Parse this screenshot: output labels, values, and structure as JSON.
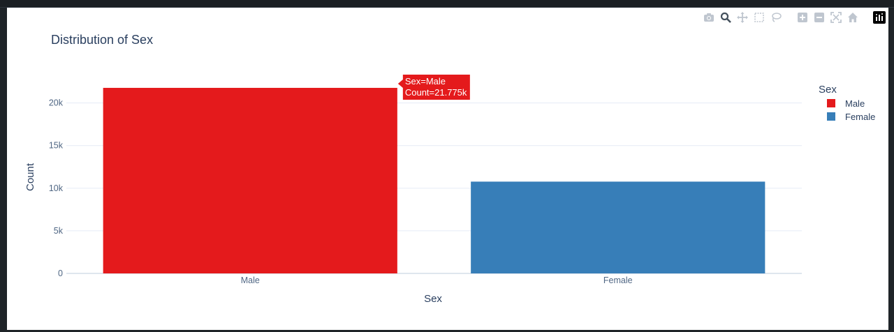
{
  "modebar": {
    "icons": [
      "camera-icon",
      "zoom-icon",
      "pan-icon",
      "box-select-icon",
      "lasso-icon",
      "zoom-in-icon",
      "zoom-out-icon",
      "autoscale-icon",
      "reset-axes-icon",
      "plotly-logo-icon"
    ]
  },
  "colors": {
    "male": "#e41a1c",
    "female": "#377eb8",
    "grid": "#e5ecf6",
    "text": "#2a3f5f",
    "tick": "#506784"
  },
  "chart_data": {
    "type": "bar",
    "title": "Distribution of Sex",
    "xlabel": "Sex",
    "ylabel": "Count",
    "categories": [
      "Male",
      "Female"
    ],
    "series": [
      {
        "name": "Male",
        "values": [
          21775,
          null
        ]
      },
      {
        "name": "Female",
        "values": [
          null,
          10771
        ]
      }
    ],
    "values": [
      21775,
      10771
    ],
    "ylim": [
      0,
      23000
    ],
    "yticks": [
      0,
      5000,
      10000,
      15000,
      20000
    ],
    "ytick_labels": [
      "0",
      "5k",
      "10k",
      "15k",
      "20k"
    ],
    "grid": true,
    "legend": {
      "title": "Sex",
      "placement": "right",
      "entries": [
        "Male",
        "Female"
      ]
    },
    "hover": {
      "line1": "Sex=Male",
      "line2": "Count=21.775k"
    }
  }
}
